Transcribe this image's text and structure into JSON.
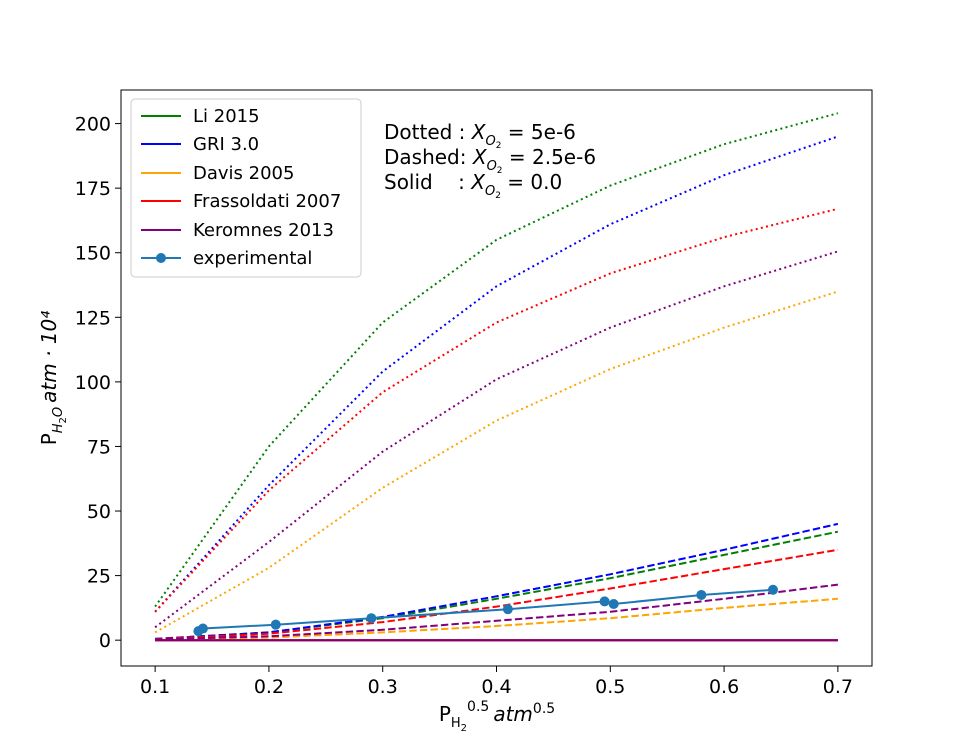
{
  "chart_data": {
    "type": "line",
    "xlabel": {
      "base": "P",
      "sub": "H",
      "subsub": "2",
      "sup": "0.5",
      "unit": "atm",
      "unit_sup": "0.5"
    },
    "ylabel": {
      "base": "P",
      "sub": "H",
      "subsub": "2",
      "sub_tail": "O",
      "unit": "atm · 10⁴"
    },
    "xlim": [
      0.07,
      0.73
    ],
    "ylim": [
      -10,
      213
    ],
    "xticks": [
      0.1,
      0.2,
      0.3,
      0.4,
      0.5,
      0.6,
      0.7
    ],
    "xtick_labels": [
      "0.1",
      "0.2",
      "0.3",
      "0.4",
      "0.5",
      "0.6",
      "0.7"
    ],
    "yticks": [
      0,
      25,
      50,
      75,
      100,
      125,
      150,
      175,
      200
    ],
    "ytick_labels": [
      "0",
      "25",
      "50",
      "75",
      "100",
      "125",
      "150",
      "175",
      "200"
    ],
    "x": [
      0.1,
      0.2,
      0.3,
      0.4,
      0.5,
      0.6,
      0.7
    ],
    "models": [
      {
        "name": "Li 2015",
        "color": "#008000",
        "dotted": [
          13,
          75,
          123,
          155,
          176,
          192,
          204
        ],
        "dashed": [
          0.5,
          3.0,
          8.5,
          16,
          24,
          33,
          42
        ],
        "solid": [
          0,
          0,
          0,
          0,
          0,
          0,
          0
        ]
      },
      {
        "name": "GRI 3.0",
        "color": "#0000ff",
        "dotted": [
          11,
          60,
          104,
          137,
          161,
          180,
          195
        ],
        "dashed": [
          0.5,
          3.0,
          9,
          17,
          25.5,
          35,
          45
        ],
        "solid": [
          0,
          0,
          0,
          0,
          0,
          0,
          0
        ]
      },
      {
        "name": "Davis 2005",
        "color": "#ffa500",
        "dotted": [
          3,
          28,
          59,
          85,
          105,
          121,
          135
        ],
        "dashed": [
          0.2,
          1.0,
          3,
          5.5,
          8.5,
          12.5,
          16
        ],
        "solid": [
          0,
          0,
          0,
          0,
          0,
          0,
          0
        ]
      },
      {
        "name": "Frassoldati 2007",
        "color": "#ff0000",
        "dotted": [
          11,
          58,
          96,
          123,
          142,
          156,
          167
        ],
        "dashed": [
          0.4,
          2.5,
          7,
          13,
          20,
          27.5,
          35
        ],
        "solid": [
          0,
          0,
          0,
          0,
          0,
          0,
          0
        ]
      },
      {
        "name": "Keromnes 2013",
        "color": "#800080",
        "dotted": [
          5,
          38,
          73,
          101,
          121,
          137,
          150.5
        ],
        "dashed": [
          0.3,
          1.5,
          4,
          7.5,
          11,
          16,
          21.5
        ],
        "solid": [
          0,
          0,
          0,
          0,
          0,
          0,
          0
        ]
      }
    ],
    "experimental": {
      "name": "experimental",
      "color": "#1f77b4",
      "x": [
        0.138,
        0.142,
        0.206,
        0.29,
        0.41,
        0.495,
        0.503,
        0.58,
        0.643
      ],
      "y": [
        3.5,
        4.5,
        6,
        8.5,
        12,
        15,
        14,
        17.5,
        19.5
      ]
    },
    "legend_position": "upper-left",
    "annotations": [
      {
        "prefix": "Dotted : ",
        "var": "X",
        "sub": "O",
        "subsub": "2",
        "value": " = 5e-6"
      },
      {
        "prefix": "Dashed: ",
        "var": "X",
        "sub": "O",
        "subsub": "2",
        "value": " = 2.5e-6"
      },
      {
        "prefix": "Solid    : ",
        "var": "X",
        "sub": "O",
        "subsub": "2",
        "value": " = 0.0"
      }
    ]
  }
}
